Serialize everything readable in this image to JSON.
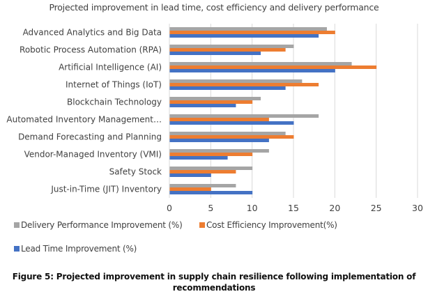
{
  "chart_data": {
    "type": "bar",
    "orientation": "horizontal",
    "title": "Projected improvement in lead time, cost efficiency and delivery performance",
    "categories": [
      "Advanced Analytics and Big Data",
      "Robotic Process Automation (RPA)",
      "Artificial Intelligence (AI)",
      "Internet of Things (IoT)",
      "Blockchain Technology",
      "Automated Inventory Management…",
      "Demand Forecasting and Planning",
      "Vendor-Managed Inventory (VMI)",
      "Safety Stock",
      "Just-in-Time (JIT) Inventory"
    ],
    "series": [
      {
        "name": "Delivery Performance Improvement (%)",
        "color": "#a5a5a5",
        "values": [
          19,
          15,
          22,
          16,
          11,
          18,
          14,
          12,
          10,
          8
        ]
      },
      {
        "name": "Cost Efficiency Improvement(%)",
        "color": "#ed7d31",
        "values": [
          20,
          14,
          25,
          18,
          10,
          12,
          15,
          10,
          8,
          5
        ]
      },
      {
        "name": "Lead Time Improvement (%)",
        "color": "#4472c4",
        "values": [
          18,
          11,
          20,
          14,
          8,
          15,
          12,
          7,
          5,
          10
        ]
      }
    ],
    "xlabel": "",
    "ylabel": "",
    "xlim": [
      0,
      30
    ],
    "xticks": [
      0,
      5,
      10,
      15,
      20,
      25,
      30
    ],
    "grid": true,
    "legend_position": "bottom"
  },
  "caption": {
    "line1": "Figure 5: Projected improvement in supply chain resilience following implementation of",
    "line2": "recommendations"
  }
}
